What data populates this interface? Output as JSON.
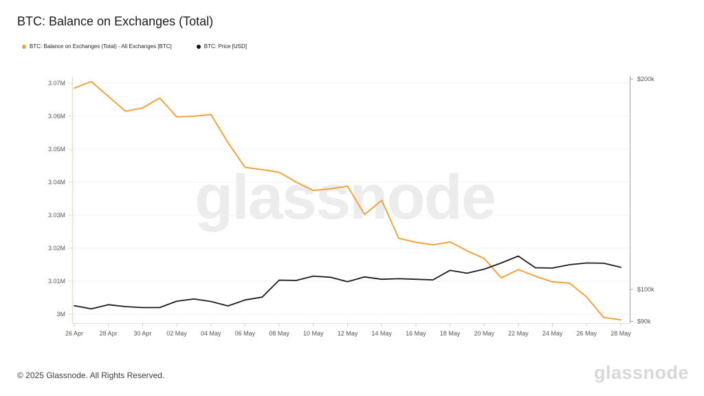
{
  "header": {
    "title": "BTC: Balance on Exchanges (Total)"
  },
  "legend": {
    "items": [
      {
        "label": "BTC: Balance on Exchanges (Total) - All Exchanges [BTC]",
        "color": "#f0a23c"
      },
      {
        "label": "BTC: Price [USD]",
        "color": "#111111"
      }
    ]
  },
  "watermark": {
    "text": "glassnode"
  },
  "footer": {
    "copyright": "© 2025 Glassnode. All Rights Reserved.",
    "brand": "glassnode"
  },
  "chart_data": {
    "type": "line",
    "title": "BTC: Balance on Exchanges (Total)",
    "x": [
      "26 Apr",
      "27 Apr",
      "28 Apr",
      "29 Apr",
      "30 Apr",
      "01 May",
      "02 May",
      "03 May",
      "04 May",
      "05 May",
      "06 May",
      "07 May",
      "08 May",
      "09 May",
      "10 May",
      "11 May",
      "12 May",
      "13 May",
      "14 May",
      "15 May",
      "16 May",
      "17 May",
      "18 May",
      "19 May",
      "20 May",
      "21 May",
      "22 May",
      "23 May",
      "24 May",
      "25 May",
      "26 May",
      "27 May",
      "28 May"
    ],
    "series": [
      {
        "name": "BTC: Balance on Exchanges (Total) - All Exchanges [BTC]",
        "axis": "left",
        "unit": "M BTC",
        "color": "#f0a23c",
        "values": [
          3.0685,
          3.0705,
          3.066,
          3.0615,
          3.0625,
          3.0655,
          3.0598,
          3.06,
          3.0605,
          3.052,
          3.0445,
          3.0438,
          3.043,
          3.04,
          3.0375,
          3.038,
          3.0388,
          3.0302,
          3.0345,
          3.023,
          3.0218,
          3.021,
          3.0219,
          3.0192,
          3.0169,
          3.011,
          3.0135,
          3.0115,
          3.0098,
          3.0094,
          3.0052,
          2.999,
          2.9983
        ]
      },
      {
        "name": "BTC: Price [USD]",
        "axis": "right",
        "unit": "USD",
        "color": "#1a1a1a",
        "values": [
          94800,
          93800,
          95100,
          94500,
          94200,
          94200,
          96200,
          96900,
          96100,
          94700,
          96600,
          97500,
          103100,
          103000,
          104500,
          104100,
          102600,
          104200,
          103400,
          103600,
          103400,
          103200,
          106500,
          105500,
          106900,
          109100,
          111600,
          107400,
          107300,
          108500,
          109100,
          109000,
          107600
        ]
      }
    ],
    "left_axis": {
      "scale": "linear",
      "range": [
        3.0,
        3.07
      ],
      "ticks": [
        {
          "label": "3.07M",
          "value": 3.07
        },
        {
          "label": "3.06M",
          "value": 3.06
        },
        {
          "label": "3.05M",
          "value": 3.05
        },
        {
          "label": "3.04M",
          "value": 3.04
        },
        {
          "label": "3.03M",
          "value": 3.03
        },
        {
          "label": "3.02M",
          "value": 3.02
        },
        {
          "label": "3.01M",
          "value": 3.01
        },
        {
          "label": "3M",
          "value": 3.0
        }
      ]
    },
    "right_axis": {
      "scale": "log",
      "range": [
        90000,
        200000
      ],
      "ticks": [
        {
          "label": "$200k",
          "value": 200000
        },
        {
          "label": "$100k",
          "value": 100000
        },
        {
          "label": "$90k",
          "value": 90000
        }
      ]
    },
    "grid": "horizontal",
    "legend_position": "top-left"
  }
}
